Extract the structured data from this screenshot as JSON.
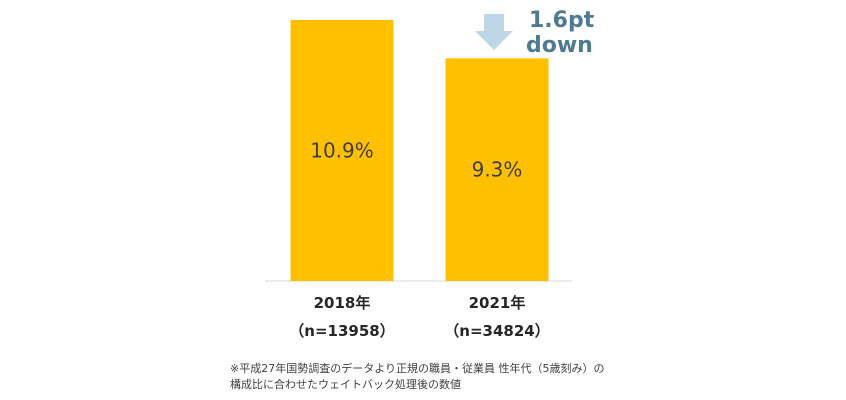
{
  "chart_data": {
    "type": "bar",
    "title": "",
    "categories": [
      "2018年",
      "2021年"
    ],
    "sample_sizes": [
      "（n=13958）",
      "（n=34824）"
    ],
    "values": [
      10.9,
      9.3
    ],
    "value_labels": [
      "10.9%",
      "9.3%"
    ],
    "ylim": [
      0,
      10.9
    ],
    "grid": false,
    "xlabel": "",
    "ylabel": "",
    "annotation": {
      "line1": "1.6pt",
      "line2": "down",
      "arrow": "down-arrow-icon"
    }
  },
  "footnote": {
    "line1": "※平成27年国勢調査のデータより正規の職員・従業員 性年代（5歳刻み）の",
    "line2": "構成比に合わせたウェイトバック処理後の数値"
  },
  "colors": {
    "bar": "#FFC000",
    "arrow": "#BDD7E7",
    "annotation_text": "#4E7A92",
    "axis": "#D9D9D9"
  }
}
